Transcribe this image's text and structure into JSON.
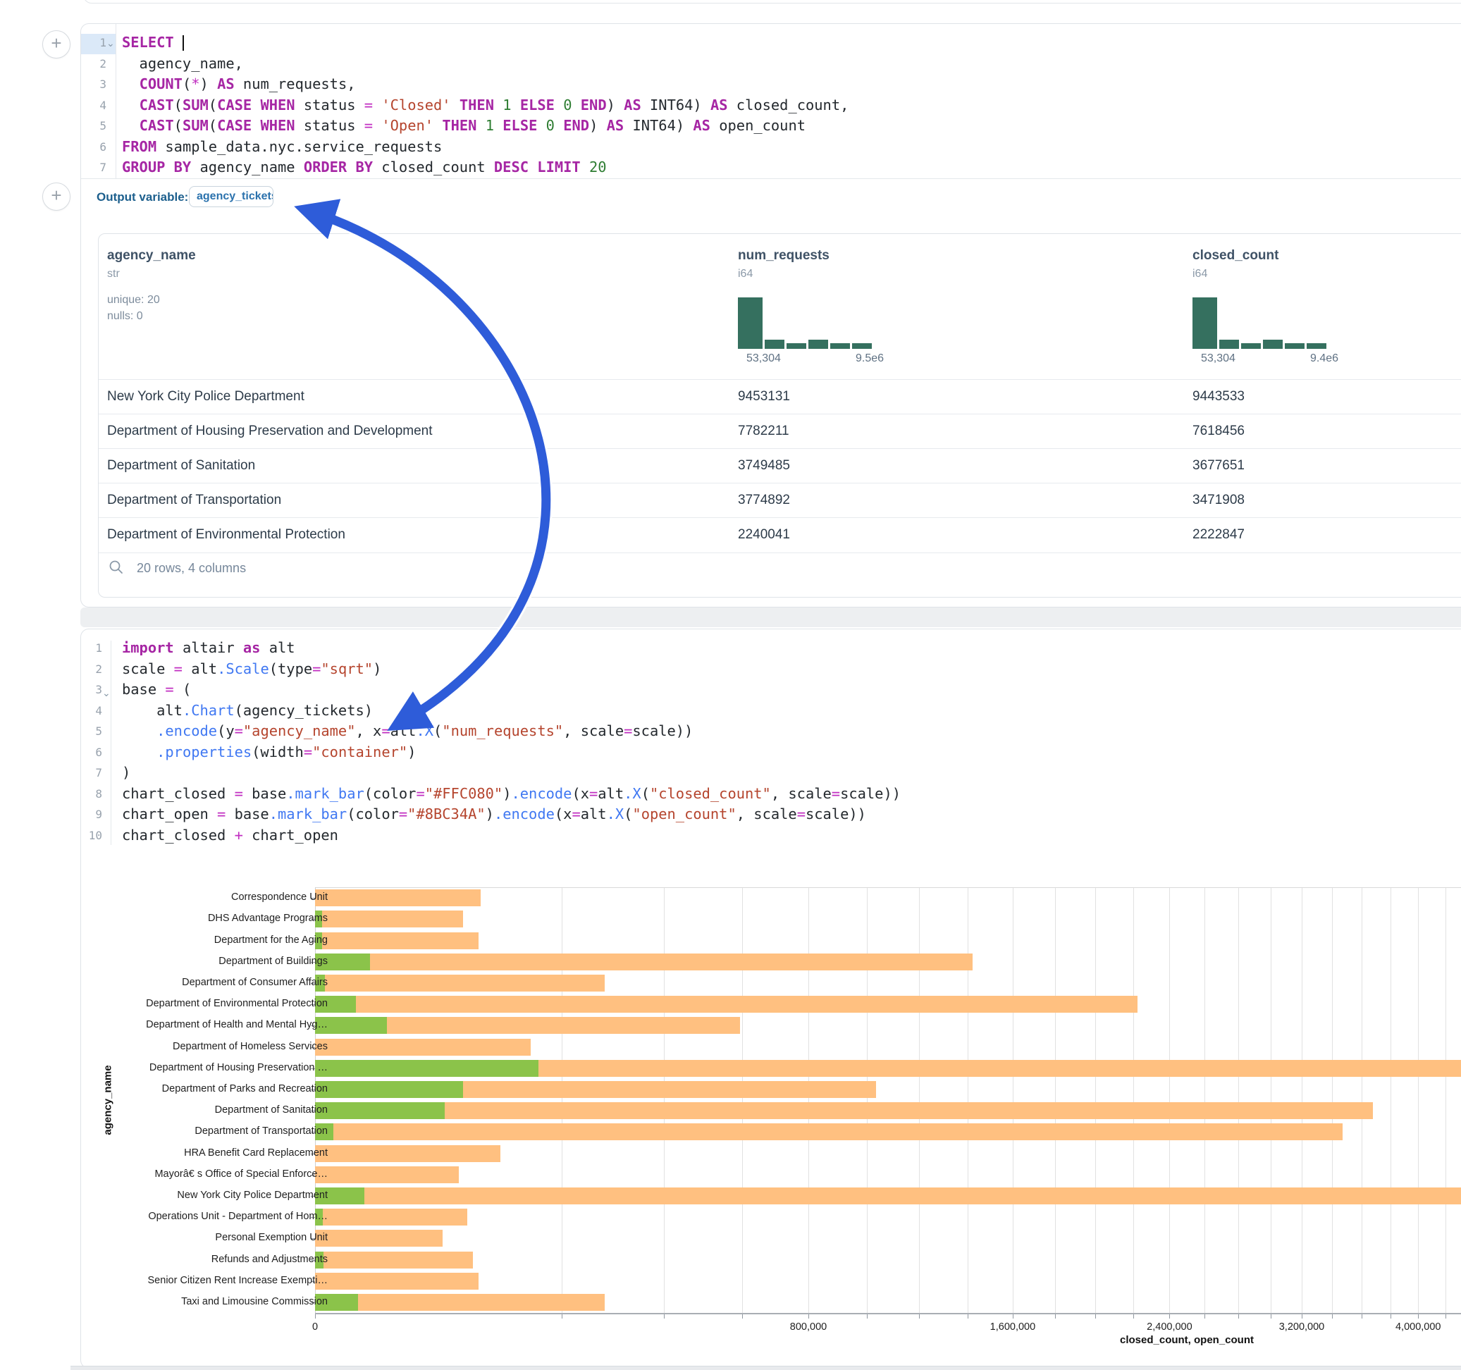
{
  "colors": {
    "arrow_blue": "#2E5CD9",
    "closed_bar": "#FFC080",
    "open_bar": "#8BC34A",
    "histogram": "#35705F"
  },
  "plus_button_label": "+",
  "sql_cell": {
    "line_numbers": [
      "1",
      "2",
      "3",
      "4",
      "5",
      "6",
      "7"
    ],
    "lines": [
      [
        [
          "k",
          "SELECT"
        ],
        [
          "t",
          " "
        ],
        [
          "caret",
          ""
        ]
      ],
      [
        [
          "t",
          "  agency_name,"
        ]
      ],
      [
        [
          "t",
          "  "
        ],
        [
          "k",
          "COUNT"
        ],
        [
          "t",
          "("
        ],
        [
          "o",
          "*"
        ],
        [
          "t",
          ") "
        ],
        [
          "k",
          "AS"
        ],
        [
          "t",
          " num_requests,"
        ]
      ],
      [
        [
          "t",
          "  "
        ],
        [
          "k",
          "CAST"
        ],
        [
          "t",
          "("
        ],
        [
          "k",
          "SUM"
        ],
        [
          "t",
          "("
        ],
        [
          "k",
          "CASE"
        ],
        [
          "t",
          " "
        ],
        [
          "k",
          "WHEN"
        ],
        [
          "t",
          " status "
        ],
        [
          "o",
          "="
        ],
        [
          "t",
          " "
        ],
        [
          "s",
          "'Closed'"
        ],
        [
          "t",
          " "
        ],
        [
          "k",
          "THEN"
        ],
        [
          "t",
          " "
        ],
        [
          "n",
          "1"
        ],
        [
          "t",
          " "
        ],
        [
          "k",
          "ELSE"
        ],
        [
          "t",
          " "
        ],
        [
          "n",
          "0"
        ],
        [
          "t",
          " "
        ],
        [
          "k",
          "END"
        ],
        [
          "t",
          ") "
        ],
        [
          "k",
          "AS"
        ],
        [
          "t",
          " INT64) "
        ],
        [
          "k",
          "AS"
        ],
        [
          "t",
          " closed_count,"
        ]
      ],
      [
        [
          "t",
          "  "
        ],
        [
          "k",
          "CAST"
        ],
        [
          "t",
          "("
        ],
        [
          "k",
          "SUM"
        ],
        [
          "t",
          "("
        ],
        [
          "k",
          "CASE"
        ],
        [
          "t",
          " "
        ],
        [
          "k",
          "WHEN"
        ],
        [
          "t",
          " status "
        ],
        [
          "o",
          "="
        ],
        [
          "t",
          " "
        ],
        [
          "s",
          "'Open'"
        ],
        [
          "t",
          " "
        ],
        [
          "k",
          "THEN"
        ],
        [
          "t",
          " "
        ],
        [
          "n",
          "1"
        ],
        [
          "t",
          " "
        ],
        [
          "k",
          "ELSE"
        ],
        [
          "t",
          " "
        ],
        [
          "n",
          "0"
        ],
        [
          "t",
          " "
        ],
        [
          "k",
          "END"
        ],
        [
          "t",
          ") "
        ],
        [
          "k",
          "AS"
        ],
        [
          "t",
          " INT64) "
        ],
        [
          "k",
          "AS"
        ],
        [
          "t",
          " open_count"
        ]
      ],
      [
        [
          "k",
          "FROM"
        ],
        [
          "t",
          " sample_data.nyc.service_requests"
        ]
      ],
      [
        [
          "k",
          "GROUP BY"
        ],
        [
          "t",
          " agency_name "
        ],
        [
          "k",
          "ORDER BY"
        ],
        [
          "t",
          " closed_count "
        ],
        [
          "k",
          "DESC"
        ],
        [
          "t",
          " "
        ],
        [
          "k",
          "LIMIT"
        ],
        [
          "t",
          " "
        ],
        [
          "n",
          "20"
        ]
      ]
    ],
    "output_label": "Output variable:",
    "output_variable": "agency_tickets"
  },
  "table": {
    "columns": [
      {
        "name": "agency_name",
        "type": "str",
        "stats": [
          "unique: 20",
          "nulls: 0"
        ]
      },
      {
        "name": "num_requests",
        "type": "i64",
        "histogram": {
          "bars": [
            73,
            13,
            8,
            13,
            8,
            8
          ],
          "min_label": "53,304",
          "max_label": "9.5e6"
        }
      },
      {
        "name": "closed_count",
        "type": "i64",
        "histogram": {
          "bars": [
            73,
            13,
            8,
            13,
            8,
            8
          ],
          "min_label": "53,304",
          "max_label": "9.4e6"
        }
      }
    ],
    "rows": [
      [
        "New York City Police Department",
        "9453131",
        "9443533"
      ],
      [
        "Department of Housing Preservation and Development",
        "7782211",
        "7618456"
      ],
      [
        "Department of Sanitation",
        "3749485",
        "3677651"
      ],
      [
        "Department of Transportation",
        "3774892",
        "3471908"
      ],
      [
        "Department of Environmental Protection",
        "2240041",
        "2222847"
      ]
    ],
    "footer": "20 rows, 4 columns"
  },
  "python_cell": {
    "line_numbers": [
      "1",
      "2",
      "3",
      "4",
      "5",
      "6",
      "7",
      "8",
      "9",
      "10"
    ],
    "lines": [
      [
        [
          "k",
          "import"
        ],
        [
          "t",
          " altair "
        ],
        [
          "k",
          "as"
        ],
        [
          "t",
          " alt"
        ]
      ],
      [
        [
          "t",
          "scale "
        ],
        [
          "o",
          "="
        ],
        [
          "t",
          " alt"
        ],
        [
          "f",
          ".Scale"
        ],
        [
          "t",
          "(type"
        ],
        [
          "o",
          "="
        ],
        [
          "s",
          "\"sqrt\""
        ],
        [
          "t",
          ")"
        ]
      ],
      [
        [
          "t",
          "base "
        ],
        [
          "o",
          "="
        ],
        [
          "t",
          " ("
        ]
      ],
      [
        [
          "t",
          "    alt"
        ],
        [
          "f",
          ".Chart"
        ],
        [
          "t",
          "(agency_tickets)"
        ]
      ],
      [
        [
          "t",
          "    "
        ],
        [
          "f",
          ".encode"
        ],
        [
          "t",
          "(y"
        ],
        [
          "o",
          "="
        ],
        [
          "s",
          "\"agency_name\""
        ],
        [
          "t",
          ", x"
        ],
        [
          "o",
          "="
        ],
        [
          "t",
          "alt"
        ],
        [
          "f",
          ".X"
        ],
        [
          "t",
          "("
        ],
        [
          "s",
          "\"num_requests\""
        ],
        [
          "t",
          ", scale"
        ],
        [
          "o",
          "="
        ],
        [
          "t",
          "scale))"
        ]
      ],
      [
        [
          "t",
          "    "
        ],
        [
          "f",
          ".properties"
        ],
        [
          "t",
          "(width"
        ],
        [
          "o",
          "="
        ],
        [
          "s",
          "\"container\""
        ],
        [
          "t",
          ")"
        ]
      ],
      [
        [
          "t",
          ")"
        ]
      ],
      [
        [
          "t",
          "chart_closed "
        ],
        [
          "o",
          "="
        ],
        [
          "t",
          " base"
        ],
        [
          "f",
          ".mark_bar"
        ],
        [
          "t",
          "(color"
        ],
        [
          "o",
          "="
        ],
        [
          "s",
          "\"#FFC080\""
        ],
        [
          "t",
          ")"
        ],
        [
          "f",
          ".encode"
        ],
        [
          "t",
          "(x"
        ],
        [
          "o",
          "="
        ],
        [
          "t",
          "alt"
        ],
        [
          "f",
          ".X"
        ],
        [
          "t",
          "("
        ],
        [
          "s",
          "\"closed_count\""
        ],
        [
          "t",
          ", scale"
        ],
        [
          "o",
          "="
        ],
        [
          "t",
          "scale))"
        ]
      ],
      [
        [
          "t",
          "chart_open "
        ],
        [
          "o",
          "="
        ],
        [
          "t",
          " base"
        ],
        [
          "f",
          ".mark_bar"
        ],
        [
          "t",
          "(color"
        ],
        [
          "o",
          "="
        ],
        [
          "s",
          "\"#8BC34A\""
        ],
        [
          "t",
          ")"
        ],
        [
          "f",
          ".encode"
        ],
        [
          "t",
          "(x"
        ],
        [
          "o",
          "="
        ],
        [
          "t",
          "alt"
        ],
        [
          "f",
          ".X"
        ],
        [
          "t",
          "("
        ],
        [
          "s",
          "\"open_count\""
        ],
        [
          "t",
          ", scale"
        ],
        [
          "o",
          "="
        ],
        [
          "t",
          "scale))"
        ]
      ],
      [
        [
          "t",
          "chart_closed "
        ],
        [
          "o",
          "+"
        ],
        [
          "t",
          " chart_open"
        ]
      ]
    ]
  },
  "chart_data": {
    "type": "bar",
    "orientation": "horizontal",
    "x_scale": "sqrt",
    "xlabel": "closed_count, open_count",
    "ylabel": "agency_name",
    "x_ticks": {
      "values": [
        0,
        800000,
        1600000,
        2400000,
        3200000,
        4000000
      ],
      "labels": [
        "0",
        "800,000",
        "1,600,000",
        "2,400,000",
        "3,200,000",
        "4,000,000"
      ]
    },
    "grid_step": 200000,
    "grid_max": 4600000,
    "categories": [
      "Correspondence Unit",
      "DHS Advantage Programs",
      "Department for the Aging",
      "Department of Buildings",
      "Department of Consumer Affairs",
      "Department of Environmental Protection",
      "Department of Health and Mental Hyg…",
      "Department of Homeless Services",
      "Department of Housing Preservation …",
      "Department of Parks and Recreation",
      "Department of Sanitation",
      "Department of Transportation",
      "HRA Benefit Card Replacement",
      "Mayorâ€ s Office of Special Enforce…",
      "New York City Police Department",
      "Operations Unit - Department of Hom…",
      "Personal Exemption Unit",
      "Refunds and Adjustments",
      "Senior Citizen Rent Increase Exempti…",
      "Taxi and Limousine Commission"
    ],
    "series": [
      {
        "name": "closed_count",
        "color": "#FFC080",
        "values": [
          90000,
          72000,
          88000,
          1421000,
          276000,
          2222847,
          594000,
          153000,
          7618456,
          1034000,
          3677651,
          3471908,
          113000,
          68000,
          9443533,
          76000,
          53304,
          82000,
          88000,
          276000
        ]
      },
      {
        "name": "open_count",
        "color": "#8BC34A",
        "values": [
          0,
          150,
          150,
          10000,
          300,
          5500,
          17000,
          0,
          163755,
          72000,
          55000,
          1100,
          0,
          0,
          8000,
          200,
          0,
          250,
          0,
          6000
        ]
      }
    ]
  }
}
